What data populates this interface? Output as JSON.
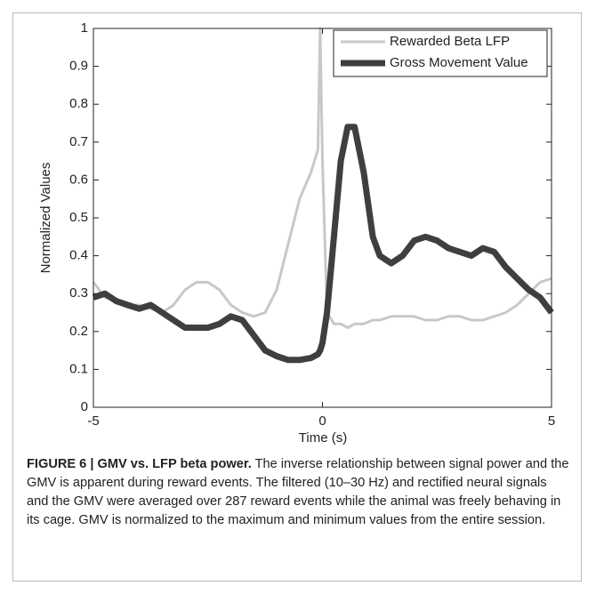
{
  "chart_data": {
    "type": "line",
    "xlabel": "Time (s)",
    "ylabel": "Normalized Values",
    "x": [
      -5,
      -4.75,
      -4.5,
      -4.25,
      -4,
      -3.75,
      -3.5,
      -3.25,
      -3,
      -2.75,
      -2.5,
      -2.25,
      -2,
      -1.75,
      -1.5,
      -1.25,
      -1,
      -0.75,
      -0.5,
      -0.25,
      -0.1,
      -0.05,
      0,
      0.1,
      0.25,
      0.4,
      0.55,
      0.7,
      0.9,
      1.1,
      1.25,
      1.5,
      1.75,
      2,
      2.25,
      2.5,
      2.75,
      3,
      3.25,
      3.5,
      3.75,
      4,
      4.25,
      4.5,
      4.75,
      5
    ],
    "series": [
      {
        "name": "Rewarded Beta LFP",
        "color": "#c8c8c8",
        "values": [
          0.33,
          0.29,
          0.28,
          0.27,
          0.27,
          0.26,
          0.25,
          0.27,
          0.31,
          0.33,
          0.33,
          0.31,
          0.27,
          0.25,
          0.24,
          0.25,
          0.31,
          0.43,
          0.55,
          0.62,
          0.68,
          1.0,
          0.65,
          0.25,
          0.22,
          0.22,
          0.21,
          0.22,
          0.22,
          0.23,
          0.23,
          0.24,
          0.24,
          0.24,
          0.23,
          0.23,
          0.24,
          0.24,
          0.23,
          0.23,
          0.24,
          0.25,
          0.27,
          0.3,
          0.33,
          0.34
        ]
      },
      {
        "name": "Gross Movement Value",
        "color": "#3f3f3f",
        "values": [
          0.29,
          0.3,
          0.28,
          0.27,
          0.26,
          0.27,
          0.25,
          0.23,
          0.21,
          0.21,
          0.21,
          0.22,
          0.24,
          0.23,
          0.19,
          0.15,
          0.135,
          0.125,
          0.125,
          0.13,
          0.14,
          0.15,
          0.17,
          0.25,
          0.45,
          0.65,
          0.74,
          0.74,
          0.62,
          0.45,
          0.4,
          0.38,
          0.4,
          0.44,
          0.45,
          0.44,
          0.42,
          0.41,
          0.4,
          0.42,
          0.41,
          0.37,
          0.34,
          0.31,
          0.29,
          0.25
        ]
      }
    ],
    "xlim": [
      -5,
      5
    ],
    "xticks": [
      -5,
      0,
      5
    ],
    "ylim": [
      0,
      1
    ],
    "yticks": [
      0,
      0.1,
      0.2,
      0.3,
      0.4,
      0.5,
      0.6,
      0.7,
      0.8,
      0.9,
      1
    ],
    "grid": false,
    "legend": "upper right"
  },
  "caption": {
    "label": "FIGURE 6 | GMV vs. LFP beta power.",
    "text": "The inverse relationship between signal power and the GMV is apparent during reward events. The filtered (10–30 Hz) and rectified neural signals and the GMV were averaged over 287 reward events while the animal was freely behaving in its cage. GMV is normalized to the maximum and minimum values from the entire session."
  }
}
